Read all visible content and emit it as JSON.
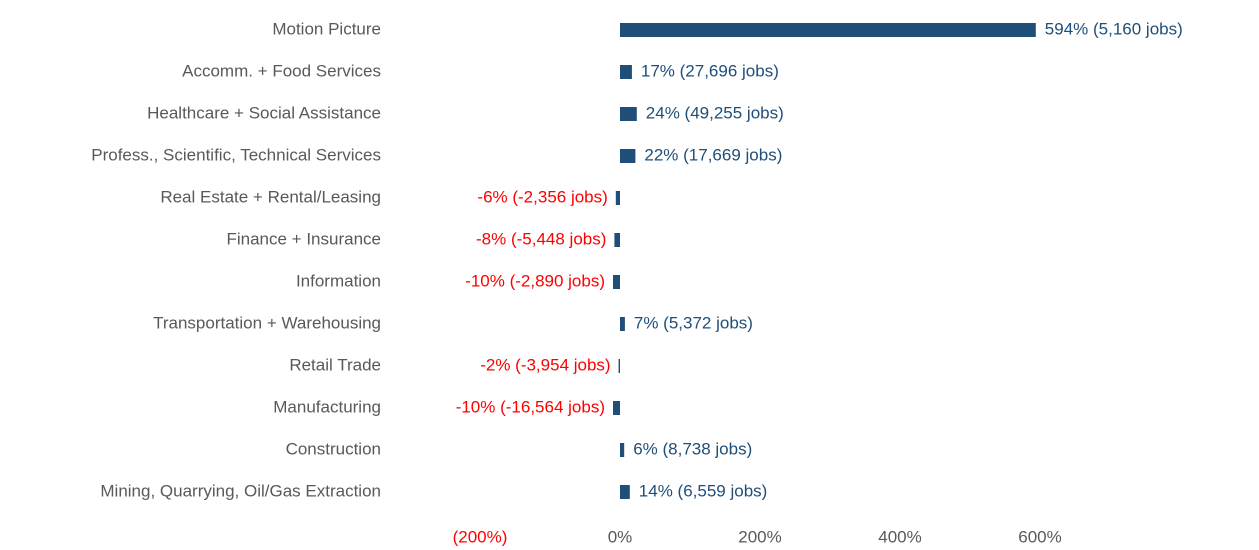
{
  "chart_data": {
    "type": "bar",
    "orientation": "horizontal",
    "categories": [
      "Motion Picture",
      "Accomm. + Food Services",
      "Healthcare + Social Assistance",
      "Profess., Scientific, Technical Services",
      "Real Estate + Rental/Leasing",
      "Finance + Insurance",
      "Information",
      "Transportation + Warehousing",
      "Retail Trade",
      "Manufacturing",
      "Construction",
      "Mining, Quarrying, Oil/Gas Extraction"
    ],
    "values": [
      594,
      17,
      24,
      22,
      -6,
      -8,
      -10,
      7,
      -2,
      -10,
      6,
      14
    ],
    "value_labels": [
      "594% (5,160 jobs)",
      "17% (27,696 jobs)",
      "24% (49,255 jobs)",
      "22% (17,669 jobs)",
      "-6% (-2,356 jobs)",
      "-8% (-5,448 jobs)",
      "-10% (-2,890 jobs)",
      "7% (5,372 jobs)",
      "-2% (-3,954 jobs)",
      "-10% (-16,564 jobs)",
      "6% (8,738 jobs)",
      "14% (6,559 jobs)"
    ],
    "color": "#1f4e79",
    "negative_color": "#ff0000",
    "xlim": [
      -200,
      800
    ],
    "xticks": [
      {
        "value": -200,
        "label": "(200%)"
      },
      {
        "value": 0,
        "label": "0%"
      },
      {
        "value": 200,
        "label": "200%"
      },
      {
        "value": 400,
        "label": "400%"
      },
      {
        "value": 600,
        "label": "600%"
      }
    ],
    "grid": false
  }
}
